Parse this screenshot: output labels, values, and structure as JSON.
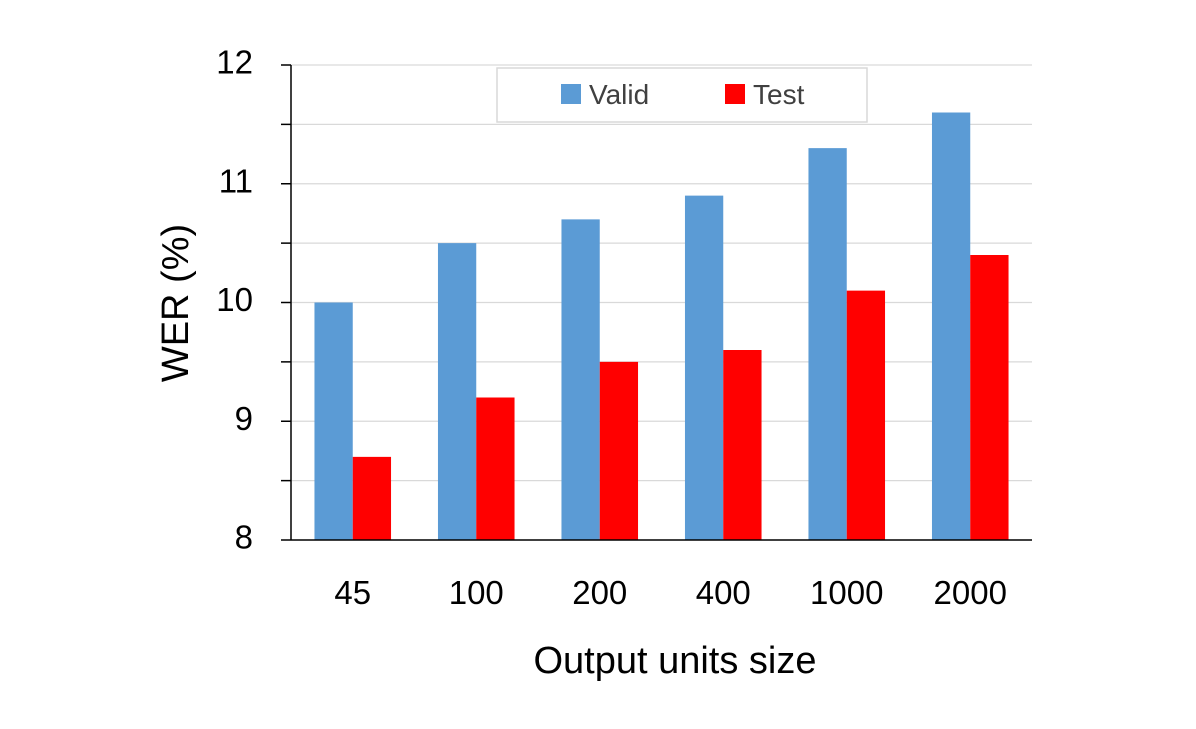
{
  "chart_data": {
    "type": "bar",
    "title": "",
    "xlabel": "Output units size",
    "ylabel": "WER (%)",
    "categories": [
      "45",
      "100",
      "200",
      "400",
      "1000",
      "2000"
    ],
    "series": [
      {
        "name": "Valid",
        "color": "#5b9bd5",
        "values": [
          10.0,
          10.5,
          10.7,
          10.9,
          11.3,
          11.6
        ]
      },
      {
        "name": "Test",
        "color": "#ff0000",
        "values": [
          8.7,
          9.2,
          9.5,
          9.6,
          10.1,
          10.4
        ]
      }
    ],
    "ylim": [
      8,
      12
    ],
    "yticks": [
      8,
      9,
      10,
      11,
      12
    ],
    "minor_grid_step": 0.5,
    "grid": true,
    "legend_position": "top-center"
  }
}
